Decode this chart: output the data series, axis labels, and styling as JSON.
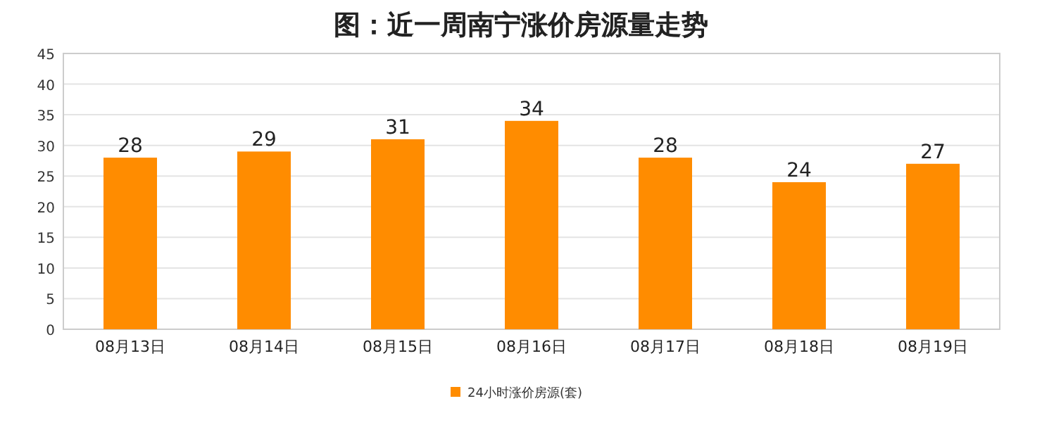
{
  "chart_data": {
    "type": "bar",
    "title": "图：近一周南宁涨价房源量走势",
    "categories": [
      "08月13日",
      "08月14日",
      "08月15日",
      "08月16日",
      "08月17日",
      "08月18日",
      "08月19日"
    ],
    "series": [
      {
        "name": "24小时涨价房源(套)",
        "color": "#ff8c00",
        "values": [
          28,
          29,
          31,
          34,
          28,
          24,
          27
        ]
      }
    ],
    "ylim": [
      0,
      45
    ],
    "yticks": [
      0,
      5,
      10,
      15,
      20,
      25,
      30,
      35,
      40,
      45
    ],
    "grid": "y",
    "legend": "bottom",
    "data_labels": true
  }
}
